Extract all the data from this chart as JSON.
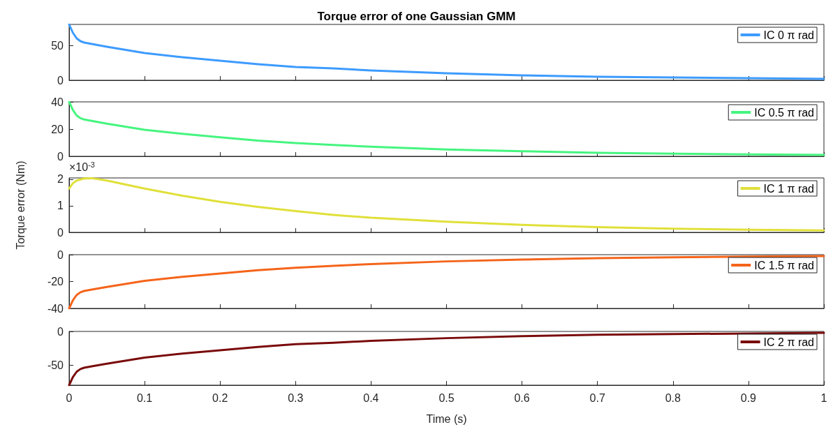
{
  "chart_data": [
    {
      "type": "line",
      "title": "Torque error of one Gaussian GMM",
      "legend": "top right",
      "marker": "none",
      "line_style": "solid",
      "grid": false,
      "tick_labels": "y",
      "xlim": [
        0,
        1
      ],
      "xticks": [
        0,
        0.1,
        0.2,
        0.3,
        0.4,
        0.5,
        0.6,
        0.7,
        0.8,
        0.9,
        1
      ],
      "ylim": [
        0,
        80
      ],
      "yticks": [
        0,
        50
      ],
      "series": [
        {
          "name": "IC 0 π rad",
          "color": "#3d9bff",
          "x": [
            0,
            0.005,
            0.01,
            0.015,
            0.02,
            0.03,
            0.05,
            0.1,
            0.15,
            0.2,
            0.25,
            0.3,
            0.35,
            0.4,
            0.5,
            0.6,
            0.7,
            0.8,
            0.9,
            1
          ],
          "values": [
            80,
            68,
            60,
            56,
            54,
            52,
            48,
            39,
            33,
            28,
            23,
            19,
            17,
            14,
            10,
            7,
            5,
            4,
            3,
            2
          ]
        }
      ]
    },
    {
      "type": "line",
      "legend": "top right",
      "marker": "none",
      "line_style": "solid",
      "grid": false,
      "tick_labels": "y",
      "xlim": [
        0,
        1
      ],
      "xticks": [
        0,
        0.1,
        0.2,
        0.3,
        0.4,
        0.5,
        0.6,
        0.7,
        0.8,
        0.9,
        1
      ],
      "ylim": [
        0,
        40
      ],
      "yticks": [
        0,
        20,
        40
      ],
      "series": [
        {
          "name": "IC 0.5 π rad",
          "color": "#45f57f",
          "x": [
            0,
            0.005,
            0.01,
            0.015,
            0.02,
            0.03,
            0.05,
            0.1,
            0.15,
            0.2,
            0.25,
            0.3,
            0.35,
            0.4,
            0.5,
            0.6,
            0.7,
            0.8,
            0.9,
            1
          ],
          "values": [
            40,
            34,
            30,
            28,
            27,
            26,
            24,
            19.5,
            16.5,
            14,
            11.5,
            9.8,
            8.3,
            7,
            5,
            3.7,
            2.6,
            1.9,
            1.4,
            1
          ]
        }
      ]
    },
    {
      "type": "line",
      "ylabel": "Torque error (Nm)",
      "annotations": [
        "×10$^{-3}$"
      ],
      "legend": "top right",
      "marker": "none",
      "line_style": "solid",
      "grid": false,
      "tick_labels": "y",
      "xlim": [
        0,
        1
      ],
      "xticks": [
        0,
        0.1,
        0.2,
        0.3,
        0.4,
        0.5,
        0.6,
        0.7,
        0.8,
        0.9,
        1
      ],
      "ylim": [
        0,
        2.05
      ],
      "yticks": [
        0,
        1,
        2
      ],
      "series": [
        {
          "name": "IC 1 π rad",
          "color": "#e0e03a",
          "x": [
            0,
            0.005,
            0.01,
            0.02,
            0.03,
            0.05,
            0.1,
            0.15,
            0.2,
            0.25,
            0.3,
            0.35,
            0.4,
            0.5,
            0.6,
            0.7,
            0.8,
            0.9,
            1
          ],
          "values": [
            1.65,
            1.85,
            1.95,
            2.03,
            2.04,
            1.95,
            1.65,
            1.38,
            1.15,
            0.96,
            0.8,
            0.66,
            0.55,
            0.4,
            0.28,
            0.2,
            0.14,
            0.1,
            0.07
          ]
        }
      ]
    },
    {
      "type": "line",
      "legend": "top right",
      "marker": "none",
      "line_style": "solid",
      "grid": false,
      "tick_labels": "y",
      "xlim": [
        0,
        1
      ],
      "xticks": [
        0,
        0.1,
        0.2,
        0.3,
        0.4,
        0.5,
        0.6,
        0.7,
        0.8,
        0.9,
        1
      ],
      "ylim": [
        -40,
        0
      ],
      "yticks": [
        -40,
        -20,
        0
      ],
      "series": [
        {
          "name": "IC 1.5 π rad",
          "color": "#f5641a",
          "x": [
            0,
            0.005,
            0.01,
            0.015,
            0.02,
            0.03,
            0.05,
            0.1,
            0.15,
            0.2,
            0.25,
            0.3,
            0.35,
            0.4,
            0.5,
            0.6,
            0.7,
            0.8,
            0.9,
            1
          ],
          "values": [
            -40,
            -34,
            -30,
            -28,
            -27,
            -26,
            -24,
            -19.5,
            -16.5,
            -14,
            -11.5,
            -9.8,
            -8.3,
            -7,
            -5,
            -3.7,
            -2.6,
            -1.9,
            -1.4,
            -1
          ]
        }
      ]
    },
    {
      "type": "line",
      "xlabel": "Time (s)",
      "legend": "top right",
      "marker": "none",
      "line_style": "solid",
      "grid": false,
      "xlim": [
        0,
        1
      ],
      "xticks": [
        0,
        0.1,
        0.2,
        0.3,
        0.4,
        0.5,
        0.6,
        0.7,
        0.8,
        0.9,
        1
      ],
      "ylim": [
        -80,
        0
      ],
      "yticks": [
        -50,
        0
      ],
      "series": [
        {
          "name": "IC 2 π rad",
          "color": "#7a0a0a",
          "x": [
            0,
            0.005,
            0.01,
            0.015,
            0.02,
            0.03,
            0.05,
            0.1,
            0.15,
            0.2,
            0.25,
            0.3,
            0.35,
            0.4,
            0.5,
            0.6,
            0.7,
            0.8,
            0.9,
            1
          ],
          "values": [
            -80,
            -68,
            -60,
            -56,
            -54,
            -52,
            -48,
            -39,
            -33,
            -28,
            -23,
            -19,
            -17,
            -14,
            -10,
            -7,
            -5,
            -4,
            -3,
            -2
          ]
        }
      ]
    }
  ]
}
